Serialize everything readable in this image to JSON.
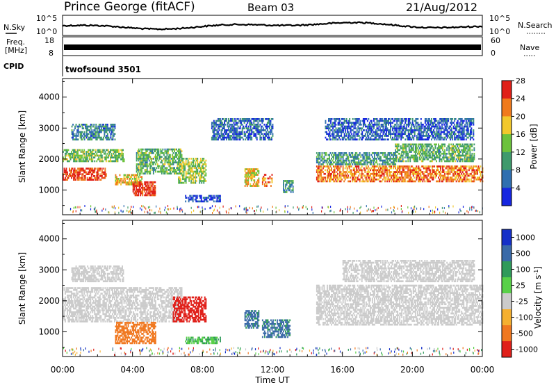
{
  "header": {
    "station": "Prince George (fitACF)",
    "beam": "Beam 03",
    "date": "21/Aug/2012"
  },
  "noise_panel": {
    "left_label": "N.Sky",
    "left_ticks": [
      "10^5",
      "10^0"
    ],
    "right_label": "N.Search",
    "right_ticks": [
      "10^5",
      "10^0"
    ]
  },
  "freq_panel": {
    "left_label_1": "Freq.",
    "left_label_2": "[MHz]",
    "left_ticks": [
      "18",
      "8"
    ],
    "right_label": "Nave",
    "right_ticks": [
      "60",
      "0"
    ]
  },
  "cpid_panel": {
    "label": "CPID",
    "program": "twofsound 3501"
  },
  "chart_data": [
    {
      "type": "heatmap",
      "name": "Power",
      "ylabel": "Slant Range [km]",
      "ylim": [
        200,
        4600
      ],
      "yticks": [
        "1000",
        "2000",
        "3000",
        "4000"
      ],
      "colorbar_label": "Power [dB]",
      "colorbar_ticks": [
        "4",
        "8",
        "12",
        "16",
        "20",
        "24",
        "28"
      ],
      "colorbar_colors": [
        "#1626e0",
        "#2f6fb0",
        "#3f9a6c",
        "#6cc23c",
        "#f2c82c",
        "#f07a1c",
        "#e02018"
      ],
      "echo_bands": [
        {
          "t0": 0.0,
          "t1": 2.5,
          "r0": 1300,
          "r1": 1700,
          "level": 27
        },
        {
          "t0": 0.0,
          "t1": 3.5,
          "r0": 1900,
          "r1": 2300,
          "level": 15
        },
        {
          "t0": 0.5,
          "t1": 3.0,
          "r0": 2600,
          "r1": 3100,
          "level": 10
        },
        {
          "t0": 3.0,
          "t1": 4.5,
          "r0": 1150,
          "r1": 1500,
          "level": 20
        },
        {
          "t0": 4.0,
          "t1": 5.3,
          "r0": 800,
          "r1": 1250,
          "level": 28
        },
        {
          "t0": 4.2,
          "t1": 6.8,
          "r0": 1500,
          "r1": 2300,
          "level": 14
        },
        {
          "t0": 6.6,
          "t1": 8.2,
          "r0": 1200,
          "r1": 2000,
          "level": 17
        },
        {
          "t0": 7.0,
          "t1": 9.0,
          "r0": 600,
          "r1": 800,
          "level": 6
        },
        {
          "t0": 8.5,
          "t1": 12.0,
          "r0": 2600,
          "r1": 3300,
          "level": 8
        },
        {
          "t0": 10.4,
          "t1": 11.2,
          "r0": 1100,
          "r1": 1700,
          "level": 20
        },
        {
          "t0": 11.4,
          "t1": 12.0,
          "r0": 1100,
          "r1": 1500,
          "level": 24
        },
        {
          "t0": 12.6,
          "t1": 13.2,
          "r0": 900,
          "r1": 1300,
          "level": 12
        },
        {
          "t0": 14.5,
          "t1": 24.0,
          "r0": 1250,
          "r1": 1750,
          "level": 24
        },
        {
          "t0": 14.5,
          "t1": 19.0,
          "r0": 1800,
          "r1": 2200,
          "level": 11
        },
        {
          "t0": 19.0,
          "t1": 23.5,
          "r0": 1900,
          "r1": 2500,
          "level": 14
        },
        {
          "t0": 15.0,
          "t1": 23.5,
          "r0": 2600,
          "r1": 3300,
          "level": 7
        }
      ]
    },
    {
      "type": "heatmap",
      "name": "Velocity",
      "ylabel": "Slant Range [km]",
      "ylim": [
        200,
        4600
      ],
      "yticks": [
        "1000",
        "2000",
        "3000",
        "4000"
      ],
      "xlabel": "Time UT",
      "xticks": [
        "00:00",
        "04:00",
        "08:00",
        "12:00",
        "16:00",
        "20:00",
        "00:00"
      ],
      "colorbar_label": "Velocity [m s",
      "colorbar_label_sup": "-1",
      "colorbar_label_end": "]",
      "colorbar_ticks": [
        "1000",
        "500",
        "100",
        "25",
        "-25",
        "-100",
        "-500",
        "-1000"
      ],
      "colorbar_colors": [
        "#1530c8",
        "#3a6aa8",
        "#2f9a5a",
        "#58d048",
        "#cbcbcb",
        "#f5b030",
        "#f07820",
        "#e0201a"
      ],
      "echo_bands": [
        {
          "t0": 0.0,
          "t1": 6.8,
          "r0": 1300,
          "r1": 2400,
          "level": 0
        },
        {
          "t0": 0.5,
          "t1": 3.5,
          "r0": 2600,
          "r1": 3100,
          "level": 0
        },
        {
          "t0": 3.0,
          "t1": 5.3,
          "r0": 600,
          "r1": 1300,
          "level": -300
        },
        {
          "t0": 6.3,
          "t1": 8.2,
          "r0": 1300,
          "r1": 2100,
          "level": -800
        },
        {
          "t0": 7.0,
          "t1": 9.0,
          "r0": 600,
          "r1": 800,
          "level": 60
        },
        {
          "t0": 10.4,
          "t1": 11.2,
          "r0": 1100,
          "r1": 1700,
          "level": 300
        },
        {
          "t0": 11.4,
          "t1": 13.0,
          "r0": 800,
          "r1": 1400,
          "level": 300
        },
        {
          "t0": 14.5,
          "t1": 24.0,
          "r0": 1200,
          "r1": 2500,
          "level": 0
        },
        {
          "t0": 16.0,
          "t1": 23.5,
          "r0": 2600,
          "r1": 3300,
          "level": 0
        }
      ]
    }
  ]
}
